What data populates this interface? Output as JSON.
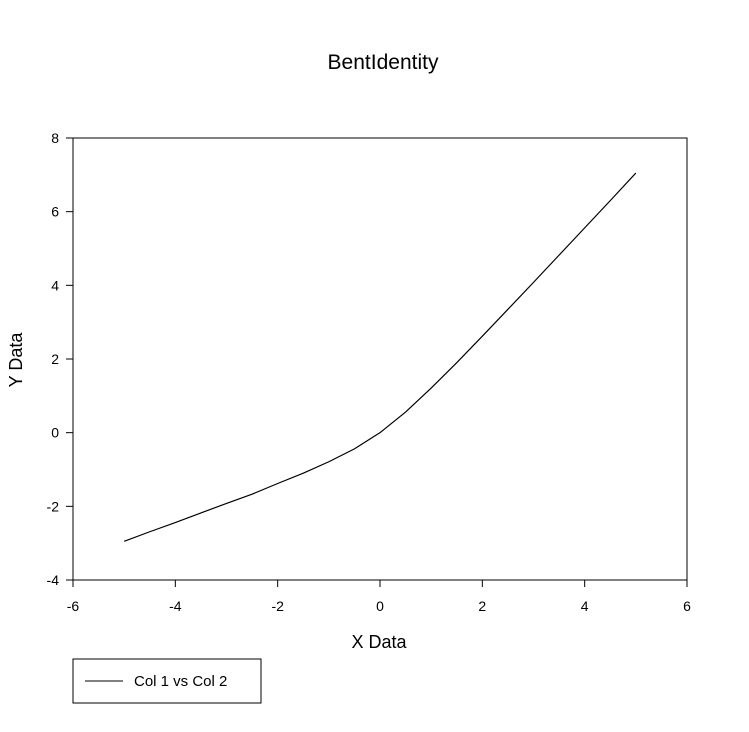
{
  "chart_data": {
    "type": "line",
    "title": "BentIdentity",
    "xlabel": "X Data",
    "ylabel": "Y Data",
    "xlim": [
      -6,
      6
    ],
    "ylim": [
      -4,
      8
    ],
    "xticks": [
      -6,
      -4,
      -2,
      0,
      2,
      4,
      6
    ],
    "yticks": [
      -4,
      -2,
      0,
      2,
      4,
      6,
      8
    ],
    "grid": false,
    "legend_position": "bottom-left",
    "series": [
      {
        "name": "Col 1 vs Col 2",
        "color": "#000000",
        "x": [
          -5,
          -4.5,
          -4,
          -3.5,
          -3,
          -2.5,
          -2,
          -1.5,
          -1,
          -0.5,
          0,
          0.5,
          1,
          1.5,
          2,
          2.5,
          3,
          3.5,
          4,
          4.5,
          5
        ],
        "y": [
          -2.95,
          -2.69,
          -2.44,
          -2.18,
          -1.92,
          -1.67,
          -1.38,
          -1.1,
          -0.79,
          -0.44,
          0,
          0.56,
          1.21,
          1.9,
          2.62,
          3.35,
          4.08,
          4.82,
          5.56,
          6.3,
          7.05
        ]
      }
    ]
  }
}
